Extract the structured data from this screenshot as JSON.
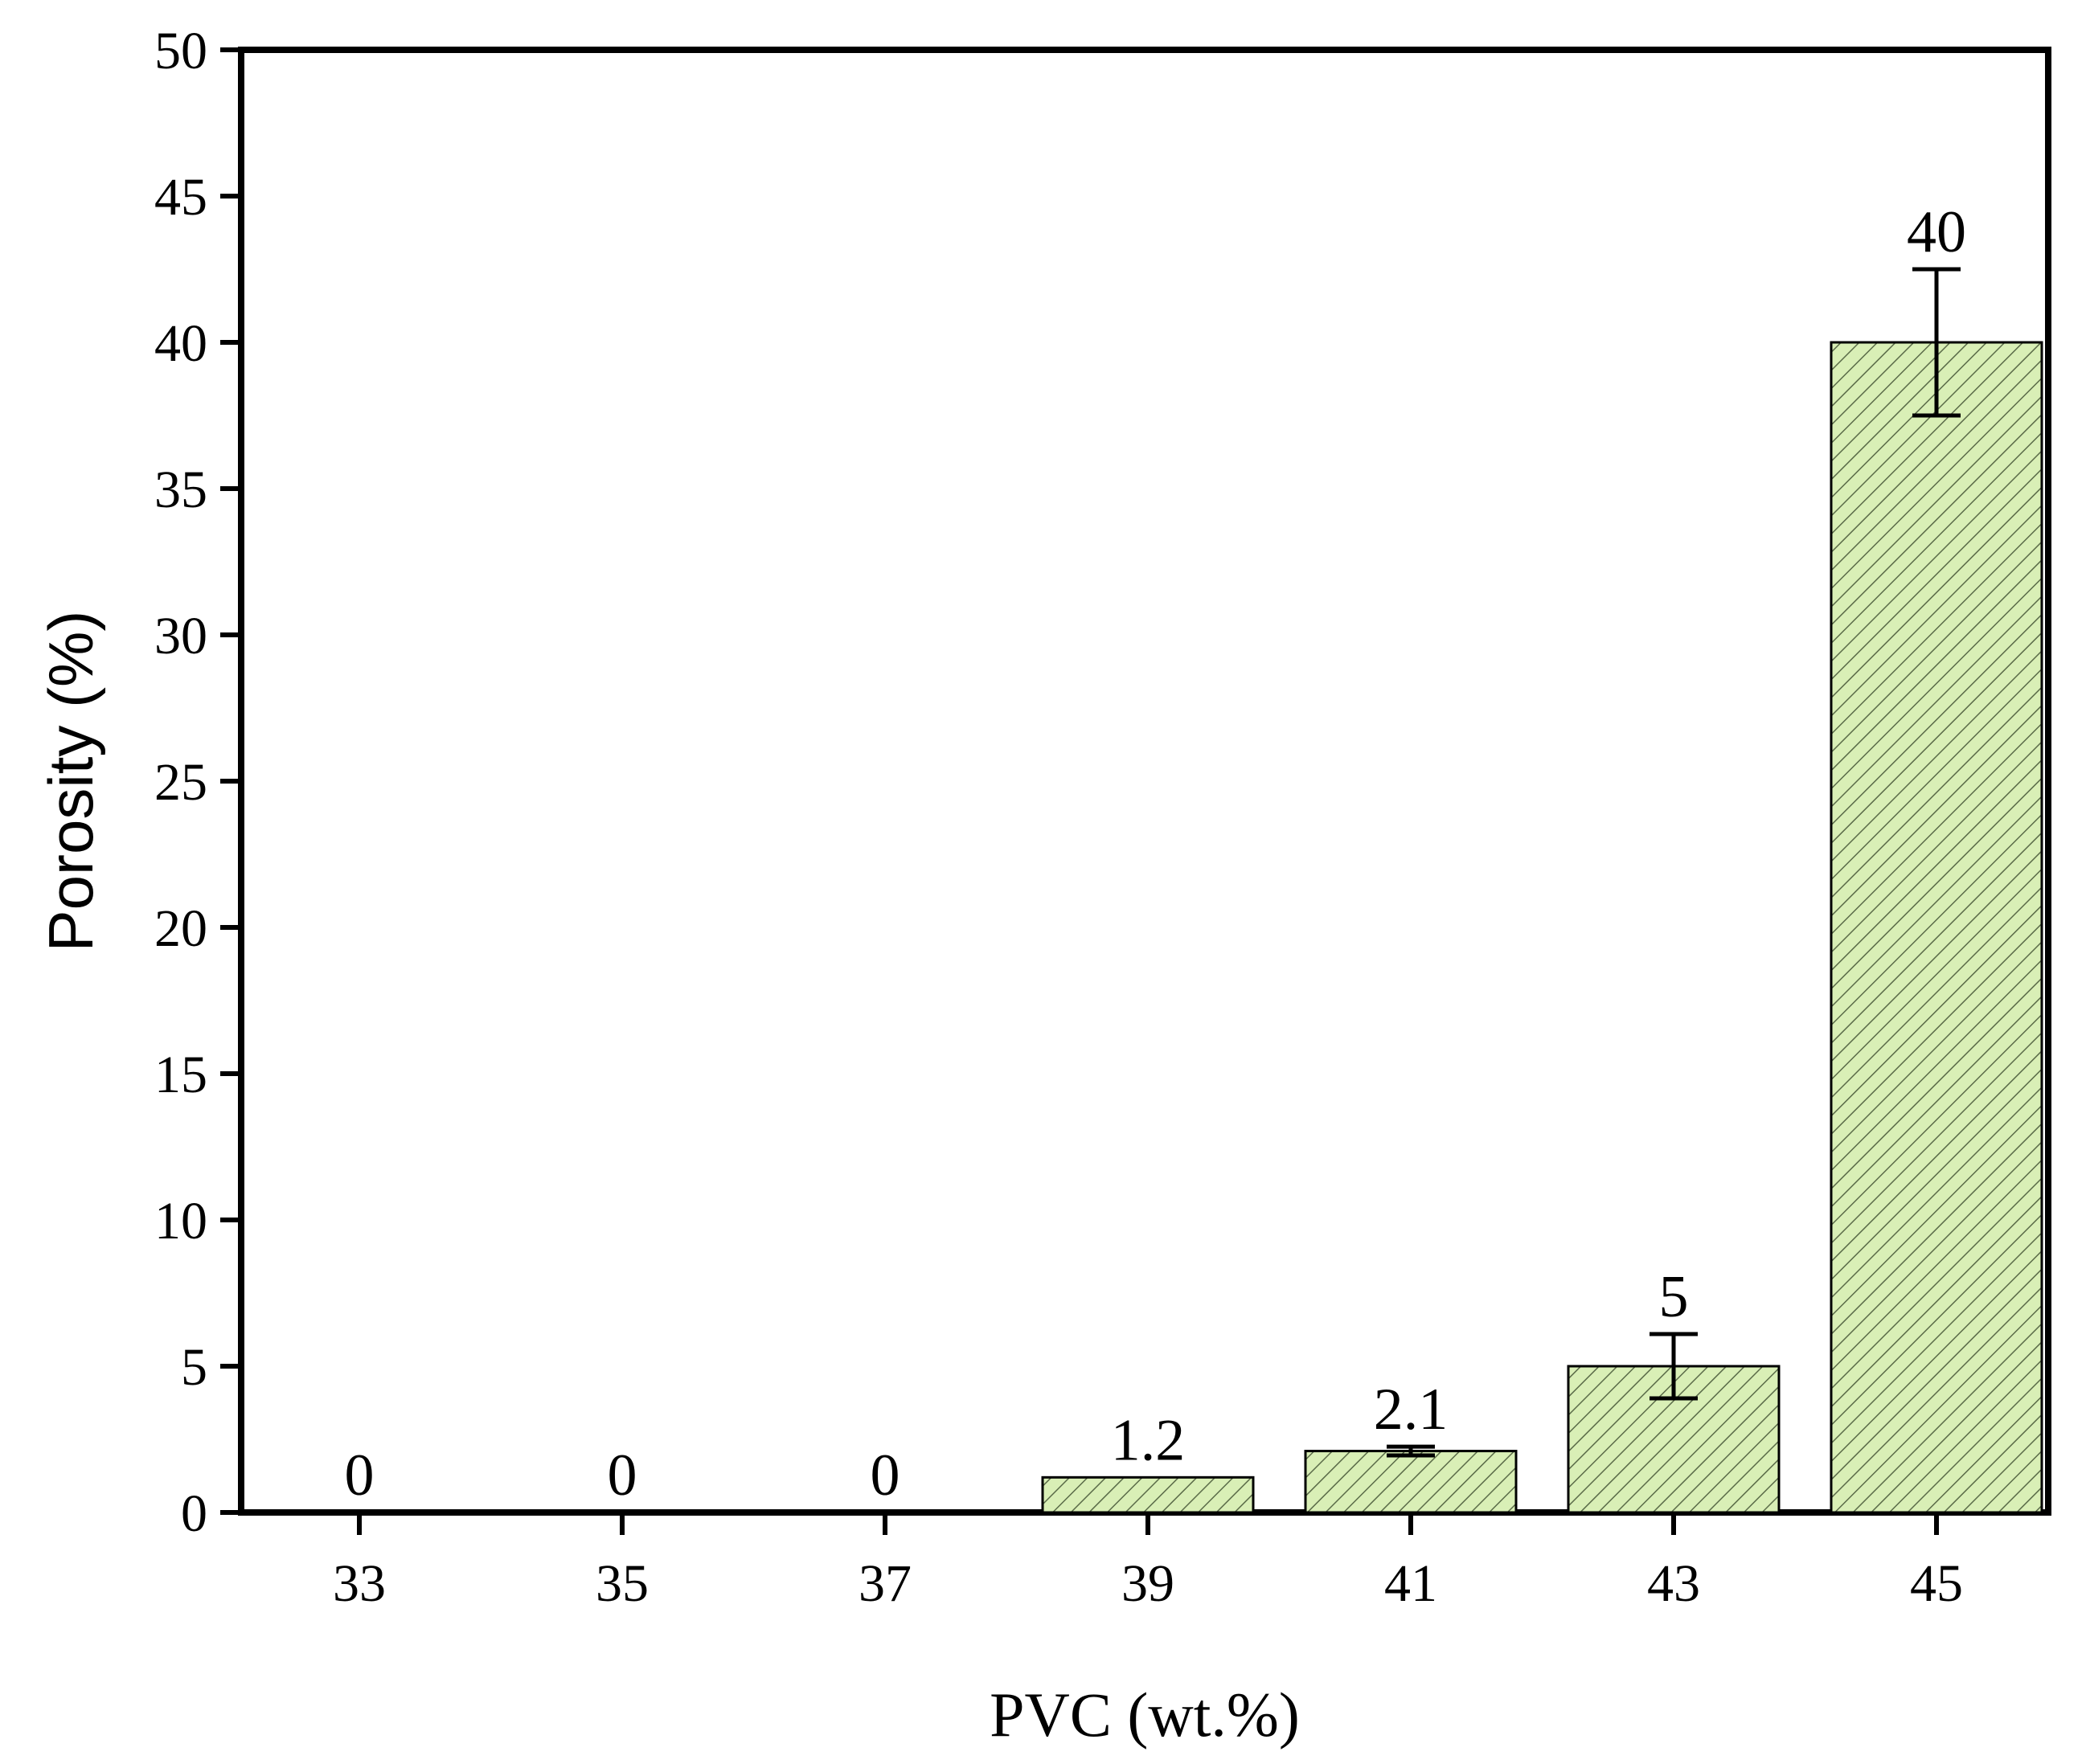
{
  "chart_data": {
    "type": "bar",
    "title": "",
    "xlabel": "PVC (wt.%)",
    "ylabel": "Porosity (%)",
    "categories": [
      "33",
      "35",
      "37",
      "39",
      "41",
      "43",
      "45"
    ],
    "values": [
      0,
      0,
      0,
      1.2,
      2.1,
      5,
      40
    ],
    "data_labels": [
      "0",
      "0",
      "0",
      "1.2",
      "2.1",
      "5",
      "40"
    ],
    "error_bars": [
      0,
      0,
      0,
      0,
      0.15,
      1.1,
      2.5
    ],
    "ylim": [
      0,
      50
    ],
    "yticks": [
      0,
      5,
      10,
      15,
      20,
      25,
      30,
      35,
      40,
      45,
      50
    ],
    "grid": false,
    "legend": "none",
    "bar_fill_color": "#d9efb6",
    "bar_hatch_color": "#5a6b48",
    "axis_color": "#000000"
  }
}
